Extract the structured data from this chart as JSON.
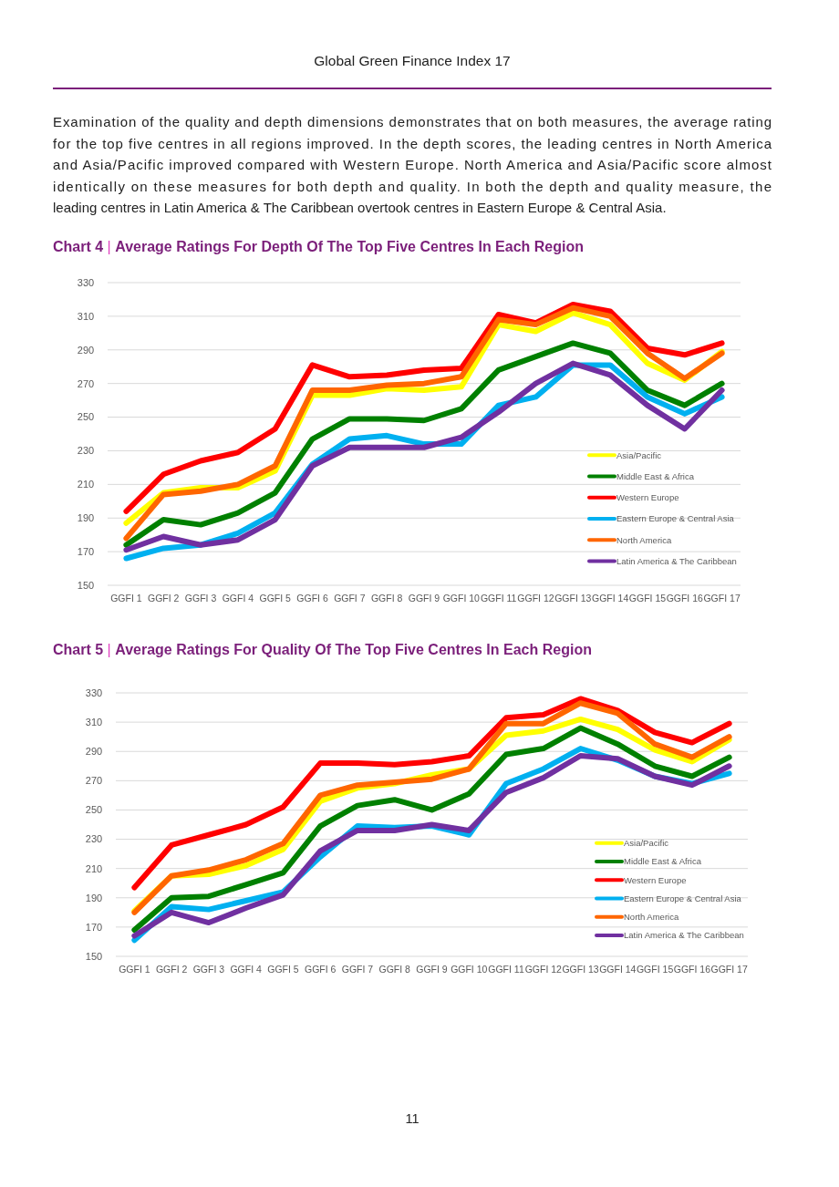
{
  "chart_data": [
    {
      "type": "line",
      "title": "Chart 4 | Average Ratings For Depth Of The Top Five Centres In Each Region",
      "annotations": [
        "Global Green Finance Index 17",
        "Examination of the quality and depth dimensions demonstrates that on both measures, the average rating",
        "for the top five centres in all regions improved. In the depth scores, the leading centres in North America",
        "and Asia/Pacific improved compared with Western Europe. North America and Asia/Pacific score almost",
        "identically on these measures for both depth and quality.  In both the depth and quality measure, the",
        "leading centres in Latin America & The Caribbean overtook centres in Eastern Europe & Central Asia."
      ],
      "categories": [
        "GGFI 1",
        "GGFI 2",
        "GGFI 3",
        "GGFI 4",
        "GGFI 5",
        "GGFI 6",
        "GGFI 7",
        "GGFI 8",
        "GGFI 9",
        "GGFI 10",
        "GGFI 11",
        "GGFI 12",
        "GGFI 13",
        "GGFI 14",
        "GGFI 15",
        "GGFI 16",
        "GGFI 17"
      ],
      "ylim": [
        150,
        330
      ],
      "yticks": [
        150,
        170,
        190,
        210,
        230,
        250,
        270,
        290,
        310,
        330
      ],
      "grid": "y",
      "legend": "right",
      "marker": "none",
      "line_style": "solid",
      "series": [
        {
          "name": "Asia/Pacific",
          "color": "#ffff00",
          "values": [
            187,
            205,
            208,
            208,
            218,
            263,
            263,
            267,
            266,
            268,
            305,
            301,
            312,
            305,
            282,
            272,
            289
          ]
        },
        {
          "name": "Middle East & Africa",
          "color": "#008000",
          "values": [
            174,
            189,
            186,
            193,
            205,
            237,
            249,
            249,
            248,
            255,
            278,
            286,
            294,
            288,
            266,
            257,
            270
          ]
        },
        {
          "name": "Western Europe",
          "color": "#ff0000",
          "values": [
            194,
            216,
            224,
            229,
            243,
            281,
            274,
            275,
            278,
            279,
            311,
            306,
            317,
            313,
            291,
            287,
            294
          ]
        },
        {
          "name": "Eastern Europe & Central Asia",
          "color": "#00b0f0",
          "values": [
            166,
            172,
            174,
            181,
            193,
            222,
            237,
            239,
            234,
            234,
            257,
            262,
            281,
            281,
            262,
            252,
            262
          ]
        },
        {
          "name": "North America",
          "color": "#ff6600",
          "values": [
            178,
            204,
            206,
            210,
            221,
            266,
            266,
            269,
            270,
            274,
            308,
            305,
            315,
            310,
            288,
            273,
            288
          ]
        },
        {
          "name": "Latin America & The Caribbean",
          "color": "#7030a0",
          "values": [
            171,
            179,
            174,
            177,
            189,
            221,
            232,
            232,
            232,
            238,
            253,
            270,
            282,
            275,
            257,
            243,
            266
          ]
        }
      ]
    },
    {
      "type": "line",
      "title": "Chart 5 | Average Ratings For Quality Of The Top Five Centres In Each Region",
      "annotations": [
        "11"
      ],
      "categories": [
        "GGFI 1",
        "GGFI 2",
        "GGFI 3",
        "GGFI 4",
        "GGFI 5",
        "GGFI 6",
        "GGFI 7",
        "GGFI 8",
        "GGFI 9",
        "GGFI 10",
        "GGFI 11",
        "GGFI 12",
        "GGFI 13",
        "GGFI 14",
        "GGFI 15",
        "GGFI 16",
        "GGFI 17"
      ],
      "ylim": [
        150,
        330
      ],
      "yticks": [
        150,
        170,
        190,
        210,
        230,
        250,
        270,
        290,
        310,
        330
      ],
      "grid": "y",
      "legend": "right",
      "marker": "none",
      "line_style": "solid",
      "series": [
        {
          "name": "Asia/Pacific",
          "color": "#ffff00",
          "values": [
            181,
            205,
            206,
            212,
            223,
            256,
            265,
            268,
            274,
            278,
            301,
            304,
            312,
            305,
            291,
            283,
            298
          ]
        },
        {
          "name": "Middle East & Africa",
          "color": "#008000",
          "values": [
            168,
            190,
            191,
            199,
            207,
            239,
            253,
            257,
            250,
            261,
            288,
            292,
            306,
            295,
            280,
            273,
            286
          ]
        },
        {
          "name": "Western Europe",
          "color": "#ff0000",
          "values": [
            197,
            226,
            233,
            240,
            252,
            282,
            282,
            281,
            283,
            287,
            313,
            315,
            326,
            318,
            303,
            296,
            309
          ]
        },
        {
          "name": "Eastern Europe & Central Asia",
          "color": "#00b0f0",
          "values": [
            161,
            184,
            182,
            188,
            194,
            218,
            239,
            238,
            239,
            233,
            268,
            278,
            292,
            284,
            273,
            268,
            275
          ]
        },
        {
          "name": "North America",
          "color": "#ff6600",
          "values": [
            180,
            205,
            209,
            216,
            227,
            260,
            267,
            269,
            271,
            278,
            309,
            309,
            323,
            316,
            295,
            286,
            300
          ]
        },
        {
          "name": "Latin America & The Caribbean",
          "color": "#7030a0",
          "values": [
            164,
            180,
            173,
            183,
            192,
            222,
            236,
            236,
            240,
            236,
            262,
            272,
            287,
            285,
            273,
            267,
            280
          ]
        }
      ]
    }
  ]
}
